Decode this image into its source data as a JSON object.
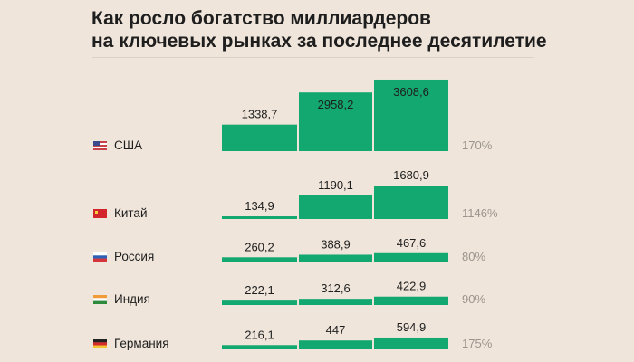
{
  "chart_data": {
    "type": "bar",
    "title_lines": [
      "Как росло богатство миллиардеров",
      "на ключевых рынках за последнее десятилетие"
    ],
    "bar_color": "#13a870",
    "rows": [
      {
        "country": "США",
        "flag": "us-flag",
        "values": [
          1338.7,
          2958.2,
          3608.6
        ],
        "labels": [
          "1338,7",
          "2958,2",
          "3608,6"
        ],
        "growth": "170%"
      },
      {
        "country": "Китай",
        "flag": "china-flag",
        "values": [
          134.9,
          1190.1,
          1680.9
        ],
        "labels": [
          "134,9",
          "1190,1",
          "1680,9"
        ],
        "growth": "1146%"
      },
      {
        "country": "Россия",
        "flag": "russia-flag",
        "values": [
          260.2,
          388.9,
          467.6
        ],
        "labels": [
          "260,2",
          "388,9",
          "467,6"
        ],
        "growth": "80%"
      },
      {
        "country": "Индия",
        "flag": "india-flag",
        "values": [
          222.1,
          312.6,
          422.9
        ],
        "labels": [
          "222,1",
          "312,6",
          "422,9"
        ],
        "growth": "90%"
      },
      {
        "country": "Германия",
        "flag": "germany-flag",
        "values": [
          216.1,
          447,
          594.9
        ],
        "labels": [
          "216,1",
          "447",
          "594,9"
        ],
        "growth": "175%"
      }
    ]
  }
}
